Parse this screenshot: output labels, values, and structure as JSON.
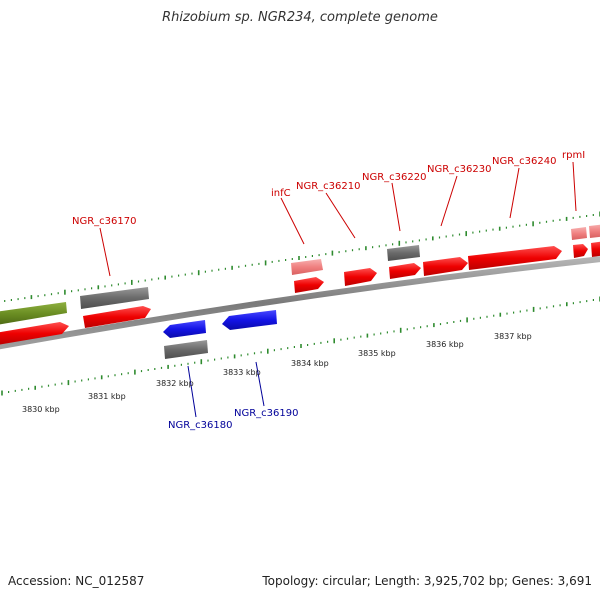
{
  "title": "Rhizobium sp. NGR234, complete genome",
  "footer": {
    "accession": "Accession: NC_012587",
    "topology": "Topology: circular; Length: 3,925,702 bp; Genes: 3,691"
  },
  "colors": {
    "forward_cds": "#ff1010",
    "reverse_cds": "#1515ee",
    "gene_gray": "#707070",
    "gene_olive": "#6b8e23",
    "rna_pink": "#f08080",
    "forward_label": "#cc0000",
    "reverse_label": "#000099",
    "tick": "#2e8b2e",
    "backbone": "#8a8a8a"
  },
  "kbp_labels": [
    "3830 kbp",
    "3831 kbp",
    "3832 kbp",
    "3833 kbp",
    "3834 kbp",
    "3835 kbp",
    "3836 kbp",
    "3837 kbp"
  ],
  "gene_labels": {
    "forward": [
      "NGR_c36170",
      "infC",
      "NGR_c36210",
      "NGR_c36220",
      "NGR_c36230",
      "NGR_c36240",
      "rpmI"
    ],
    "reverse": [
      "NGR_c36180",
      "NGR_c36190"
    ]
  }
}
